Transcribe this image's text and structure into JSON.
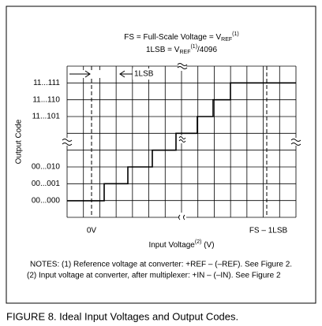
{
  "header": {
    "fs_line": {
      "prefix": "FS = Full-Scale Voltage = V",
      "sub": "REF",
      "sup": "(1)"
    },
    "lsb_line": {
      "prefix": "1LSB = V",
      "sub": "REF",
      "sup": "(1)",
      "suffix": "/4096"
    }
  },
  "diagram": {
    "y_axis_label": "Output Code",
    "codes": [
      {
        "label": "11...111"
      },
      {
        "label": "11...110"
      },
      {
        "label": "11...101"
      },
      {
        "label": "00...010"
      },
      {
        "label": "00...001"
      },
      {
        "label": "00...000"
      }
    ],
    "lsb_marker": "1LSB",
    "zero_label": "0V",
    "fs_label": "FS – 1LSB",
    "x_axis_label": {
      "text": "Input Voltage",
      "sup": "(2)",
      "suffix": " (V)"
    }
  },
  "notes": [
    "NOTES: (1) Reference voltage at converter: +REF – (–REF). See Figure 2.",
    "(2) Input voltage at converter, after multiplexer: +IN – (–IN). See Figure 2"
  ],
  "caption": "FIGURE 8. Ideal Input Voltages and Output Codes."
}
